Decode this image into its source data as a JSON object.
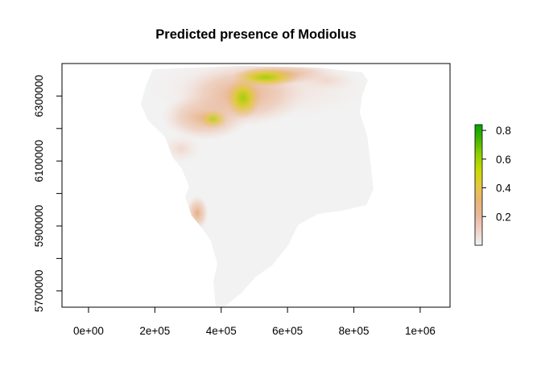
{
  "chart_data": {
    "type": "heatmap",
    "title": "Predicted presence of  Modiolus",
    "xlabel": "",
    "ylabel": "",
    "xlim": [
      -80000,
      1090000
    ],
    "ylim": [
      5650000,
      6400000
    ],
    "x_ticks": [
      {
        "value": 0,
        "label": "0e+00"
      },
      {
        "value": 200000,
        "label": "2e+05"
      },
      {
        "value": 400000,
        "label": "4e+05"
      },
      {
        "value": 600000,
        "label": "6e+05"
      },
      {
        "value": 800000,
        "label": "8e+05"
      },
      {
        "value": 1000000,
        "label": "1e+06"
      }
    ],
    "y_ticks": [
      {
        "value": 5700000,
        "label": "5700000"
      },
      {
        "value": 5800000,
        "label": ""
      },
      {
        "value": 5900000,
        "label": "5900000"
      },
      {
        "value": 6000000,
        "label": ""
      },
      {
        "value": 6100000,
        "label": "6100000"
      },
      {
        "value": 6200000,
        "label": ""
      },
      {
        "value": 6300000,
        "label": "6300000"
      }
    ],
    "legend": {
      "placement": "right",
      "range": [
        0,
        0.84
      ],
      "ticks": [
        {
          "value": 0.2,
          "label": "0.2"
        },
        {
          "value": 0.4,
          "label": "0.4"
        },
        {
          "value": 0.6,
          "label": "0.6"
        },
        {
          "value": 0.8,
          "label": "0.8"
        }
      ],
      "colors": [
        "#f2f2f2",
        "#eed2c8",
        "#eab79b",
        "#e8b672",
        "#e6c93b",
        "#c9d900",
        "#8fd000",
        "#44b400",
        "#00a600"
      ]
    },
    "land_background": "#f2f2f2",
    "grid": false
  }
}
